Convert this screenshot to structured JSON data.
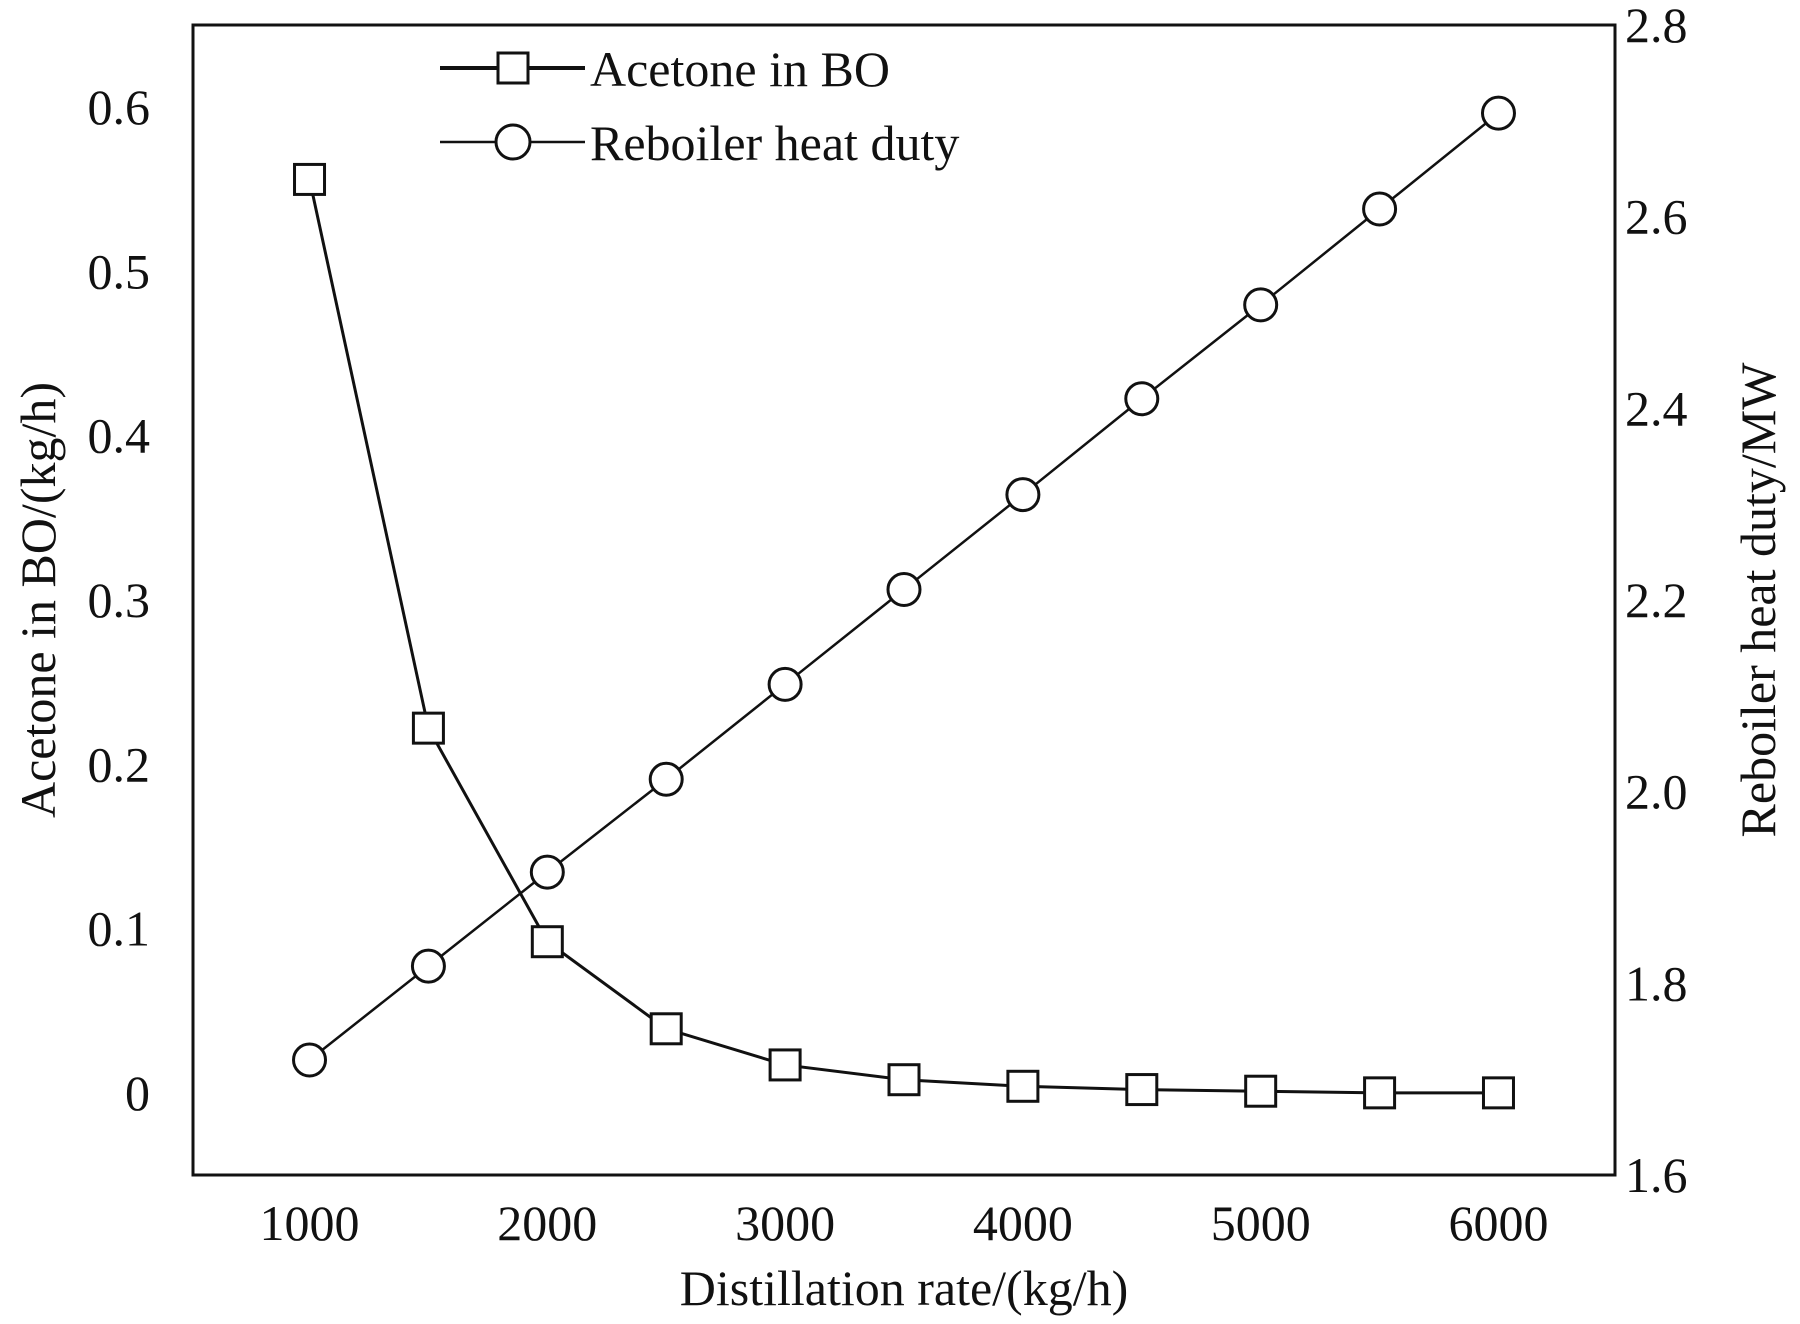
{
  "chart_data": {
    "type": "line",
    "title": "",
    "xlabel": "Distillation rate/(kg/h)",
    "ylabel": "Acetone in BO/(kg/h)",
    "y2label": "Reboiler heat duty/MW",
    "x": [
      1000,
      1500,
      2000,
      2500,
      3000,
      3500,
      4000,
      4500,
      5000,
      5500,
      6000
    ],
    "xlim": [
      510,
      6490
    ],
    "ylim": [
      -0.05,
      0.65
    ],
    "y2lim": [
      1.6,
      2.8
    ],
    "xticks": [
      "1000",
      "2000",
      "3000",
      "4000",
      "5000",
      "6000"
    ],
    "yticks": [
      "0",
      "0.1",
      "0.2",
      "0.3",
      "0.4",
      "0.5",
      "0.6"
    ],
    "y2ticks": [
      "1.6",
      "1.8",
      "2.0",
      "2.2",
      "2.4",
      "2.6",
      "2.8"
    ],
    "legend_position": "top-left",
    "grid": false,
    "series": [
      {
        "name": "Acetone in BO",
        "axis": "left",
        "marker": "square",
        "values": [
          0.556,
          0.222,
          0.092,
          0.039,
          0.017,
          0.008,
          0.004,
          0.002,
          0.001,
          0.0,
          0.0
        ]
      },
      {
        "name": "Reboiler heat duty",
        "axis": "right",
        "marker": "circle",
        "values": [
          1.72,
          1.818,
          1.916,
          2.013,
          2.112,
          2.211,
          2.31,
          2.41,
          2.508,
          2.608,
          2.708
        ]
      }
    ]
  }
}
